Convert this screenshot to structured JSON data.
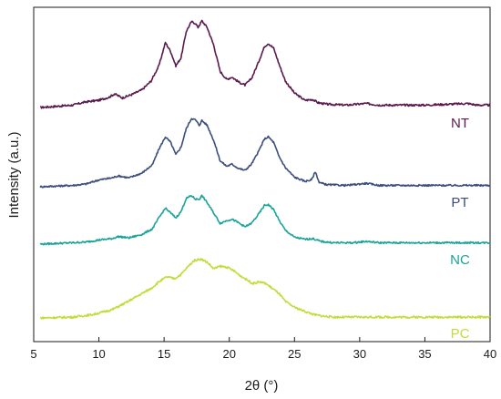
{
  "chart_data": {
    "type": "line",
    "xlabel": "2θ (°)",
    "ylabel": "Intensity (a.u.)",
    "xlim": [
      5,
      40
    ],
    "xticks": [
      5,
      10,
      15,
      20,
      25,
      30,
      35,
      40
    ],
    "yticks_shown": false,
    "grid": false,
    "series": [
      {
        "name": "NT",
        "color": "#5a1a4e",
        "x": [
          5.5,
          8,
          9,
          10,
          10.8,
          11.2,
          11.8,
          12.5,
          13.3,
          14.0,
          14.6,
          15.1,
          15.5,
          15.9,
          16.3,
          16.7,
          17.1,
          17.4,
          17.6,
          17.9,
          18.3,
          18.8,
          19.3,
          19.8,
          20.2,
          20.7,
          21.2,
          21.7,
          22.2,
          22.7,
          23.0,
          23.4,
          23.8,
          24.3,
          25.0,
          25.8,
          26.4,
          26.8,
          27.5,
          29,
          30.5,
          31.5,
          35,
          38.3,
          39,
          40
        ],
        "y": [
          0,
          0.03,
          0.07,
          0.09,
          0.13,
          0.17,
          0.12,
          0.16,
          0.22,
          0.33,
          0.52,
          0.81,
          0.7,
          0.52,
          0.62,
          0.95,
          1.07,
          1.05,
          1.0,
          1.08,
          1.0,
          0.78,
          0.45,
          0.35,
          0.38,
          0.32,
          0.28,
          0.36,
          0.55,
          0.76,
          0.8,
          0.74,
          0.55,
          0.33,
          0.18,
          0.09,
          0.1,
          0.06,
          0.04,
          0.03,
          0.05,
          0.03,
          0.03,
          0.05,
          0.03,
          0.03
        ]
      },
      {
        "name": "PT",
        "color": "#3c4e7c",
        "x": [
          5.5,
          8,
          9,
          10,
          11,
          11.5,
          12.3,
          13.3,
          14.1,
          14.6,
          15.1,
          15.5,
          15.9,
          16.3,
          16.7,
          17.1,
          17.4,
          17.7,
          17.9,
          18.3,
          18.8,
          19.3,
          19.8,
          20.2,
          20.7,
          21.2,
          21.7,
          22.2,
          22.7,
          23.0,
          23.4,
          23.8,
          24.3,
          25.0,
          25.8,
          26.3,
          26.6,
          26.9,
          27.5,
          29,
          30.5,
          31.5,
          35,
          40
        ],
        "y": [
          0,
          0.02,
          0.04,
          0.1,
          0.13,
          0.16,
          0.13,
          0.2,
          0.32,
          0.55,
          0.73,
          0.65,
          0.47,
          0.58,
          0.85,
          1.0,
          0.98,
          0.9,
          0.97,
          0.9,
          0.68,
          0.38,
          0.3,
          0.33,
          0.27,
          0.24,
          0.33,
          0.5,
          0.7,
          0.73,
          0.65,
          0.45,
          0.28,
          0.14,
          0.08,
          0.1,
          0.22,
          0.06,
          0.03,
          0.02,
          0.05,
          0.02,
          0.02,
          0.02
        ]
      },
      {
        "name": "NC",
        "color": "#1aa39a",
        "x": [
          5.5,
          8,
          9,
          10,
          11,
          11.5,
          12.3,
          13.3,
          14.1,
          14.6,
          15.1,
          15.5,
          15.9,
          16.3,
          16.7,
          17.1,
          17.4,
          17.7,
          17.9,
          18.3,
          18.8,
          19.3,
          19.8,
          20.2,
          20.7,
          21.2,
          21.7,
          22.2,
          22.7,
          23.0,
          23.4,
          23.8,
          24.3,
          25.0,
          25.8,
          26.4,
          27,
          28,
          29.5,
          30.5,
          31.5,
          35,
          40
        ],
        "y": [
          0,
          0.02,
          0.03,
          0.06,
          0.08,
          0.11,
          0.09,
          0.14,
          0.22,
          0.38,
          0.52,
          0.45,
          0.38,
          0.47,
          0.66,
          0.7,
          0.65,
          0.65,
          0.7,
          0.6,
          0.45,
          0.3,
          0.34,
          0.36,
          0.31,
          0.25,
          0.3,
          0.42,
          0.56,
          0.57,
          0.5,
          0.35,
          0.2,
          0.1,
          0.07,
          0.08,
          0.04,
          0.02,
          0.02,
          0.04,
          0.02,
          0.02,
          0.02
        ]
      },
      {
        "name": "PC",
        "color": "#c3dc3c",
        "x": [
          5.5,
          8,
          9.5,
          11,
          12,
          13,
          14,
          14.6,
          15.2,
          15.8,
          16.3,
          16.8,
          17.3,
          17.8,
          18.3,
          18.8,
          19.3,
          19.8,
          20.3,
          20.8,
          21.3,
          21.8,
          22.3,
          22.8,
          23.3,
          23.8,
          24.3,
          25,
          25.8,
          26.5,
          27.3,
          28,
          29,
          31,
          35,
          40
        ],
        "y": [
          0,
          0.01,
          0.04,
          0.1,
          0.18,
          0.27,
          0.36,
          0.44,
          0.5,
          0.48,
          0.53,
          0.62,
          0.7,
          0.72,
          0.68,
          0.6,
          0.63,
          0.62,
          0.58,
          0.52,
          0.47,
          0.42,
          0.44,
          0.42,
          0.36,
          0.3,
          0.2,
          0.13,
          0.08,
          0.04,
          0.02,
          0.01,
          0.01,
          0.01,
          0.01,
          0.01
        ]
      }
    ]
  }
}
